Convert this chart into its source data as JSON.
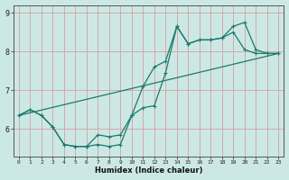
{
  "xlabel": "Humidex (Indice chaleur)",
  "bg_color": "#cce8e4",
  "line_color": "#1a7a6e",
  "grid_color": "#d4a0a0",
  "xlim": [
    -0.5,
    23.5
  ],
  "ylim": [
    5.3,
    9.2
  ],
  "xticks": [
    0,
    1,
    2,
    3,
    4,
    5,
    6,
    7,
    8,
    9,
    10,
    11,
    12,
    13,
    14,
    15,
    16,
    17,
    18,
    19,
    20,
    21,
    22,
    23
  ],
  "yticks": [
    6,
    7,
    8,
    9
  ],
  "line1_x": [
    0,
    1,
    2,
    3,
    4,
    5,
    6,
    7,
    8,
    9,
    10,
    11,
    12,
    13,
    14,
    15,
    16,
    17,
    18,
    19,
    20,
    21,
    22,
    23
  ],
  "line1_y": [
    6.35,
    6.5,
    6.35,
    6.05,
    5.6,
    5.55,
    5.55,
    5.6,
    5.55,
    5.6,
    6.35,
    6.55,
    6.6,
    7.45,
    8.65,
    8.2,
    8.3,
    8.3,
    8.35,
    8.5,
    8.05,
    7.95,
    7.95,
    7.95
  ],
  "line2_x": [
    0,
    1,
    2,
    3,
    4,
    5,
    6,
    7,
    8,
    9,
    10,
    11,
    12,
    13,
    14,
    15,
    16,
    17,
    18,
    19,
    20,
    21,
    22,
    23
  ],
  "line2_y": [
    6.35,
    6.5,
    6.35,
    6.05,
    5.6,
    5.55,
    5.55,
    5.85,
    5.8,
    5.85,
    6.35,
    7.1,
    7.6,
    7.75,
    8.65,
    8.2,
    8.3,
    8.3,
    8.35,
    8.65,
    8.75,
    8.05,
    7.95,
    7.95
  ],
  "line3_x": [
    0,
    23
  ],
  "line3_y": [
    6.35,
    7.95
  ]
}
